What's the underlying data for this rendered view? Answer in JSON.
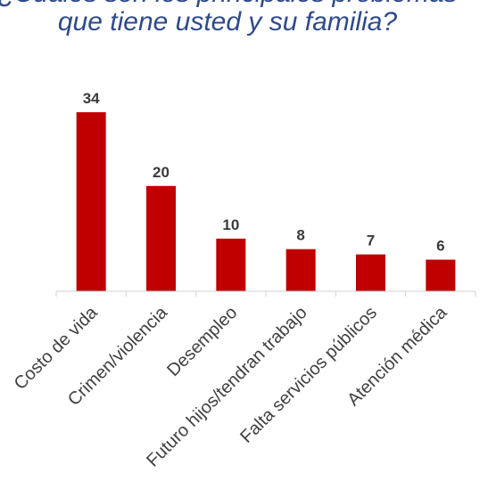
{
  "chart_data": {
    "type": "bar",
    "title_line_1": "¿Cuáles son los principales problemas",
    "title_line_2": "que tiene usted y su familia?",
    "categories": [
      "Costo de vida",
      "Crimen/violencia",
      "Desempleo",
      "Futuro hijos/tendran trabajo",
      "Falta servicios públicos",
      "Atención médica"
    ],
    "values": [
      34,
      20,
      10,
      8,
      7,
      6
    ],
    "xlabel": "",
    "ylabel": "",
    "ylim": [
      0,
      34
    ],
    "grid": false,
    "legend": "none",
    "bar_color": "#c00000",
    "axis_color": "#d0d0d0"
  }
}
